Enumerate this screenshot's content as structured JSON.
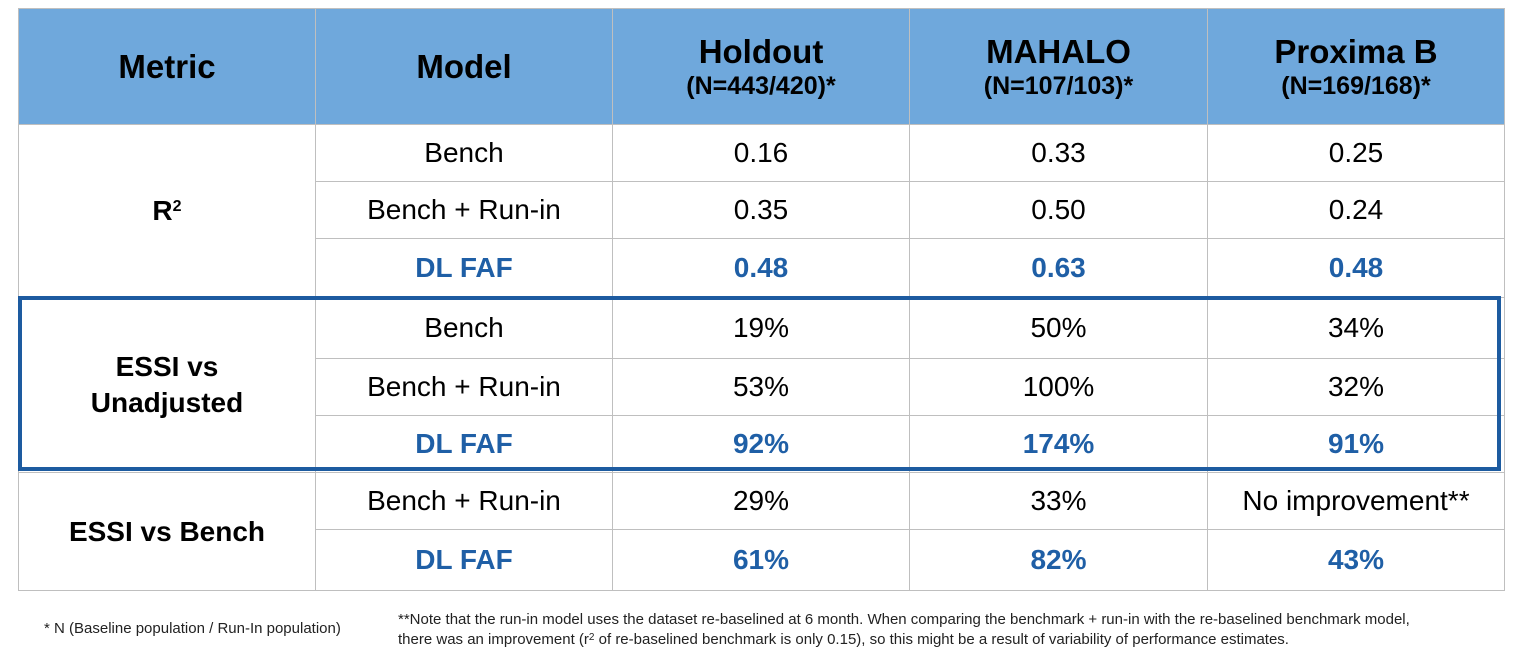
{
  "headers": {
    "metric": "Metric",
    "model": "Model",
    "holdout": "Holdout",
    "holdout_n": "(N=443/420)*",
    "mahalo": "MAHALO",
    "mahalo_n": "(N=107/103)*",
    "proxima": "Proxima B",
    "proxima_n": "(N=169/168)*"
  },
  "metrics": {
    "r2_base": "R",
    "r2_sup": "2",
    "essi_unadj_line1": "ESSI vs",
    "essi_unadj_line2": "Unadjusted",
    "essi_bench": "ESSI vs Bench"
  },
  "rows": [
    {
      "model": "Bench",
      "holdout": "0.16",
      "mahalo": "0.33",
      "proxima": "0.25"
    },
    {
      "model": "Bench + Run-in",
      "holdout": "0.35",
      "mahalo": "0.50",
      "proxima": "0.24"
    },
    {
      "model": "DL FAF",
      "holdout": "0.48",
      "mahalo": "0.63",
      "proxima": "0.48"
    },
    {
      "model": "Bench",
      "holdout": "19%",
      "mahalo": "50%",
      "proxima": "34%"
    },
    {
      "model": "Bench + Run-in",
      "holdout": "53%",
      "mahalo": "100%",
      "proxima": "32%"
    },
    {
      "model": "DL FAF",
      "holdout": "92%",
      "mahalo": "174%",
      "proxima": "91%"
    },
    {
      "model": "Bench + Run-in",
      "holdout": "29%",
      "mahalo": "33%",
      "proxima": "No improvement**"
    },
    {
      "model": "DL FAF",
      "holdout": "61%",
      "mahalo": "82%",
      "proxima": "43%"
    }
  ],
  "footnotes": {
    "left": "* N (Baseline population / Run-In population)",
    "right_part1": "**Note that the run-in model uses the dataset re-baselined at 6 month. When comparing the benchmark + run-in with the re-baselined benchmark model, there was an improvement (r",
    "right_sup": "2",
    "right_part2": " of re-baselined benchmark is only 0.15), so this might be a result of variability of performance estimates."
  },
  "colors": {
    "header_bg": "#6fa8dc",
    "highlight_text": "#1f5fa6",
    "frame": "#1d5ba0",
    "grid": "#bfbfbf"
  }
}
